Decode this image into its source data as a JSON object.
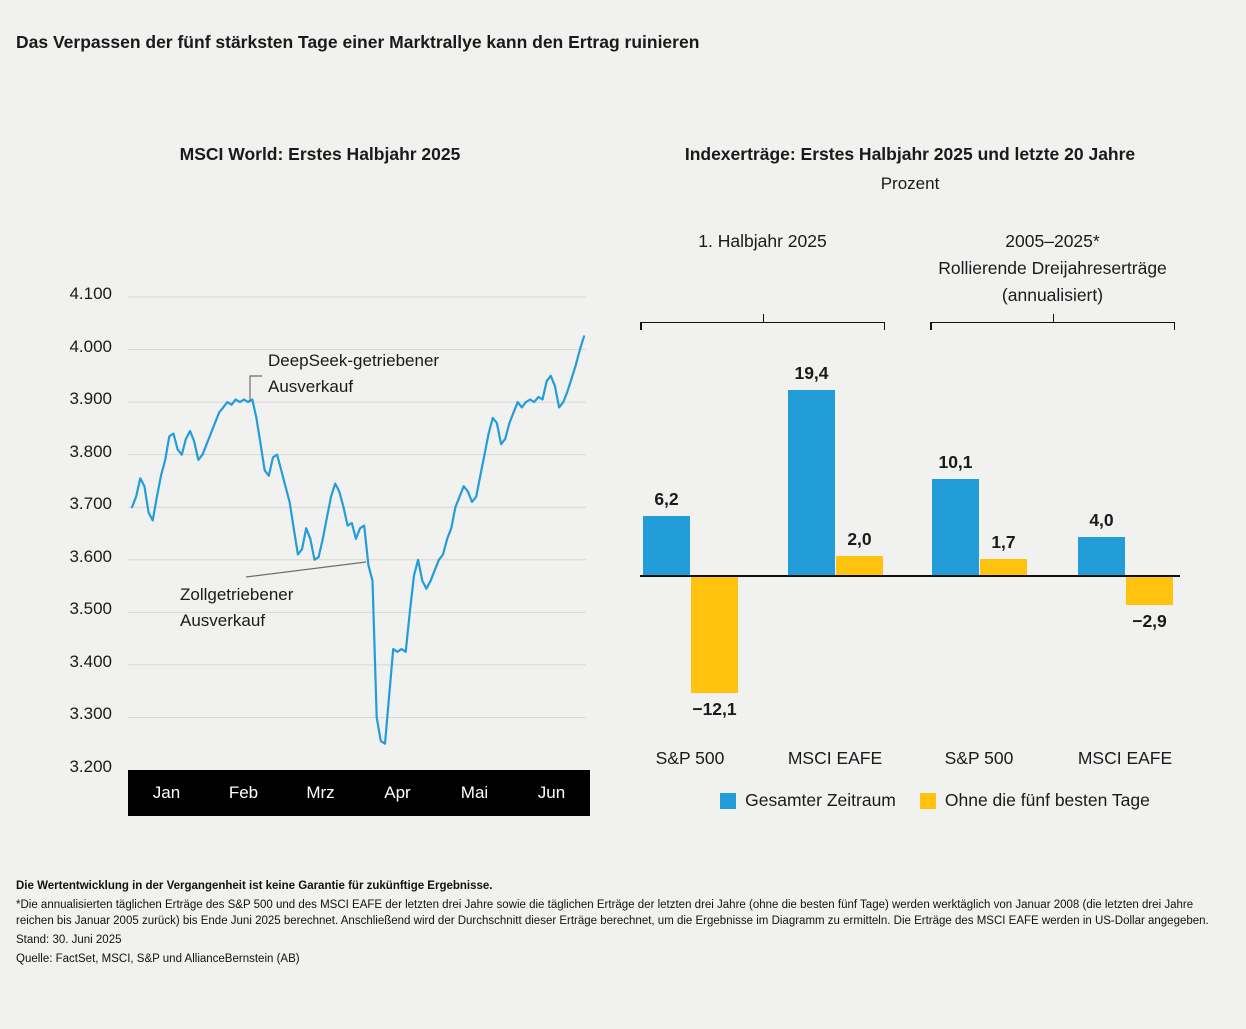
{
  "page": {
    "title": "Das Verpassen der fünf stärksten Tage einer Marktrallye kann den Ertrag ruinieren"
  },
  "colors": {
    "blue": "#239DD9",
    "yellow": "#FFC20E",
    "grid": "#d7d7d3",
    "axis_bar": "#000000",
    "leader": "#6e6e6a",
    "background": "#f1f1ef"
  },
  "chart_data": [
    {
      "type": "line",
      "title": "MSCI World: Erstes Halbjahr 2025",
      "x_labels": [
        "Jan",
        "Feb",
        "Mrz",
        "Apr",
        "Mai",
        "Jun"
      ],
      "ylim": [
        3200,
        4100
      ],
      "grid": true,
      "y_ticks": [
        {
          "value": 4100,
          "label": "4.100"
        },
        {
          "value": 4000,
          "label": "4.000"
        },
        {
          "value": 3900,
          "label": "3.900"
        },
        {
          "value": 3800,
          "label": "3.800"
        },
        {
          "value": 3700,
          "label": "3.700"
        },
        {
          "value": 3600,
          "label": "3.600"
        },
        {
          "value": 3500,
          "label": "3.500"
        },
        {
          "value": 3400,
          "label": "3.400"
        },
        {
          "value": 3300,
          "label": "3.300"
        },
        {
          "value": 3200,
          "label": "3.200"
        }
      ],
      "values": [
        3700,
        3720,
        3755,
        3740,
        3690,
        3675,
        3720,
        3760,
        3790,
        3835,
        3840,
        3810,
        3800,
        3830,
        3845,
        3825,
        3790,
        3800,
        3820,
        3840,
        3860,
        3880,
        3890,
        3900,
        3895,
        3905,
        3900,
        3905,
        3900,
        3905,
        3870,
        3820,
        3770,
        3760,
        3795,
        3800,
        3770,
        3740,
        3710,
        3660,
        3610,
        3620,
        3660,
        3640,
        3600,
        3605,
        3640,
        3680,
        3720,
        3745,
        3730,
        3700,
        3665,
        3670,
        3640,
        3660,
        3665,
        3590,
        3560,
        3300,
        3255,
        3250,
        3340,
        3430,
        3425,
        3430,
        3425,
        3500,
        3570,
        3600,
        3560,
        3545,
        3560,
        3580,
        3600,
        3610,
        3640,
        3660,
        3700,
        3720,
        3740,
        3730,
        3710,
        3720,
        3760,
        3800,
        3840,
        3870,
        3860,
        3820,
        3830,
        3860,
        3880,
        3900,
        3890,
        3900,
        3905,
        3900,
        3910,
        3905,
        3940,
        3950,
        3930,
        3890,
        3900,
        3920,
        3945,
        3970,
        4000,
        4025
      ],
      "annotations": [
        {
          "lines": [
            "DeepSeek-getriebener",
            "Ausverkauf"
          ]
        },
        {
          "lines": [
            "Zollgetriebener",
            "Ausverkauf"
          ]
        }
      ]
    },
    {
      "type": "bar",
      "title": "Indexerträge: Erstes Halbjahr 2025 und letzte 20 Jahre",
      "subtitle": "Prozent",
      "groups": [
        {
          "lines": [
            "1. Halbjahr 2025"
          ]
        },
        {
          "lines": [
            "2005–2025*",
            "Rollierende Dreijahreserträge",
            "(annualisiert)"
          ]
        }
      ],
      "categories": [
        "S&P 500",
        "MSCI EAFE",
        "S&P 500",
        "MSCI EAFE"
      ],
      "series": [
        {
          "name": "Gesamter Zeitraum",
          "color_key": "blue",
          "values": [
            6.2,
            19.4,
            10.1,
            4.0
          ],
          "labels": [
            "6,2",
            "19,4",
            "10,1",
            "4,0"
          ]
        },
        {
          "name": "Ohne die fünf besten Tage",
          "color_key": "yellow",
          "values": [
            -12.1,
            2.0,
            1.7,
            -2.9
          ],
          "labels": [
            "−12,1",
            "2,0",
            "1,7",
            "−2,9"
          ]
        }
      ],
      "legend_position": "bottom"
    }
  ],
  "footer": {
    "disclaimer": "Die Wertentwicklung in der Vergangenheit ist keine Garantie für zukünftige Ergebnisse.",
    "footnote": "*Die annualisierten täglichen Erträge des S&P 500 und des MSCI EAFE der letzten drei Jahre sowie die täglichen Erträge der letzten drei Jahre (ohne die besten fünf Tage) werden werktäglich von Januar 2008 (die letzten drei Jahre reichen bis Januar 2005 zurück) bis Ende Juni 2025 berechnet. Anschließend wird der Durchschnitt dieser Erträge berechnet, um die Ergebnisse im Diagramm zu ermitteln. Die Erträge des MSCI EAFE werden in US-Dollar angegeben.",
    "as_of": "Stand: 30. Juni 2025",
    "source": "Quelle: FactSet, MSCI, S&P und AllianceBernstein (AB)"
  }
}
